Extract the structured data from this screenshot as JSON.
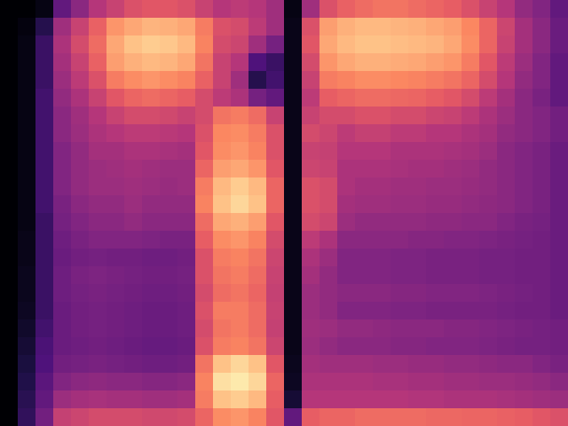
{
  "chart_data": {
    "type": "heatmap",
    "xlim": [
      0,
      32
    ],
    "ylim": [
      0,
      24
    ],
    "zlim": [
      0,
      100
    ],
    "tick_labels": false,
    "cells": [
      [
        0,
        0,
        3,
        30,
        40,
        50,
        55,
        60,
        62,
        62,
        60,
        55,
        50,
        52,
        50,
        45,
        3,
        45,
        60,
        65,
        68,
        70,
        70,
        68,
        66,
        64,
        60,
        55,
        50,
        42,
        38,
        30
      ],
      [
        0,
        2,
        15,
        45,
        55,
        65,
        78,
        82,
        85,
        84,
        82,
        72,
        60,
        58,
        52,
        45,
        4,
        60,
        80,
        84,
        86,
        86,
        85,
        84,
        82,
        80,
        75,
        66,
        56,
        46,
        40,
        32
      ],
      [
        0,
        3,
        20,
        48,
        58,
        68,
        82,
        88,
        90,
        89,
        86,
        74,
        58,
        56,
        45,
        35,
        4,
        62,
        82,
        86,
        88,
        88,
        87,
        86,
        85,
        82,
        76,
        66,
        55,
        46,
        40,
        32
      ],
      [
        0,
        3,
        20,
        46,
        55,
        65,
        80,
        84,
        86,
        85,
        82,
        70,
        55,
        50,
        25,
        20,
        4,
        58,
        78,
        82,
        84,
        84,
        83,
        82,
        80,
        78,
        72,
        62,
        52,
        44,
        38,
        30
      ],
      [
        0,
        3,
        20,
        44,
        52,
        60,
        72,
        76,
        78,
        76,
        74,
        65,
        55,
        45,
        15,
        22,
        4,
        55,
        72,
        74,
        76,
        76,
        75,
        74,
        72,
        70,
        66,
        58,
        50,
        42,
        38,
        30
      ],
      [
        0,
        3,
        22,
        42,
        48,
        55,
        62,
        66,
        68,
        66,
        64,
        58,
        52,
        48,
        35,
        30,
        4,
        52,
        64,
        66,
        68,
        68,
        67,
        66,
        64,
        62,
        58,
        52,
        46,
        40,
        36,
        30
      ],
      [
        0,
        3,
        22,
        40,
        45,
        50,
        55,
        58,
        58,
        57,
        55,
        58,
        70,
        72,
        68,
        55,
        4,
        55,
        58,
        58,
        60,
        60,
        58,
        58,
        56,
        55,
        52,
        48,
        44,
        40,
        38,
        34
      ],
      [
        0,
        3,
        22,
        40,
        44,
        48,
        50,
        52,
        52,
        51,
        50,
        60,
        75,
        76,
        72,
        60,
        4,
        58,
        56,
        52,
        54,
        54,
        52,
        52,
        50,
        50,
        48,
        46,
        42,
        40,
        38,
        34
      ],
      [
        0,
        3,
        22,
        38,
        42,
        46,
        46,
        48,
        48,
        47,
        46,
        62,
        76,
        78,
        74,
        60,
        4,
        55,
        54,
        50,
        50,
        50,
        48,
        48,
        48,
        47,
        46,
        44,
        40,
        38,
        36,
        32
      ],
      [
        0,
        3,
        22,
        38,
        42,
        44,
        45,
        46,
        45,
        44,
        44,
        66,
        80,
        82,
        78,
        62,
        4,
        56,
        55,
        48,
        48,
        48,
        47,
        46,
        46,
        45,
        44,
        42,
        40,
        38,
        36,
        32
      ],
      [
        0,
        3,
        22,
        38,
        42,
        44,
        44,
        45,
        44,
        43,
        44,
        72,
        86,
        90,
        86,
        66,
        4,
        60,
        58,
        48,
        46,
        46,
        45,
        45,
        44,
        44,
        43,
        42,
        40,
        38,
        36,
        32
      ],
      [
        0,
        3,
        22,
        36,
        40,
        42,
        42,
        44,
        42,
        42,
        42,
        74,
        88,
        92,
        88,
        66,
        4,
        60,
        58,
        46,
        45,
        45,
        44,
        44,
        43,
        43,
        42,
        41,
        40,
        38,
        36,
        32
      ],
      [
        0,
        3,
        20,
        35,
        38,
        40,
        40,
        42,
        40,
        40,
        40,
        68,
        82,
        84,
        80,
        62,
        4,
        58,
        56,
        44,
        42,
        42,
        42,
        42,
        41,
        41,
        40,
        40,
        38,
        36,
        35,
        32
      ],
      [
        0,
        4,
        20,
        33,
        36,
        38,
        38,
        38,
        37,
        36,
        36,
        64,
        76,
        78,
        74,
        58,
        4,
        52,
        48,
        40,
        40,
        40,
        40,
        39,
        39,
        38,
        38,
        37,
        36,
        35,
        34,
        32
      ],
      [
        0,
        4,
        20,
        32,
        34,
        35,
        34,
        34,
        33,
        33,
        34,
        60,
        72,
        74,
        70,
        56,
        4,
        48,
        44,
        38,
        38,
        38,
        37,
        37,
        36,
        36,
        36,
        35,
        35,
        34,
        34,
        32
      ],
      [
        0,
        5,
        20,
        33,
        36,
        37,
        36,
        35,
        34,
        34,
        35,
        60,
        70,
        72,
        68,
        55,
        4,
        46,
        42,
        38,
        38,
        38,
        37,
        37,
        36,
        36,
        36,
        35,
        35,
        34,
        34,
        32
      ],
      [
        0,
        5,
        20,
        33,
        35,
        36,
        35,
        34,
        33,
        33,
        34,
        58,
        68,
        70,
        66,
        54,
        4,
        44,
        42,
        40,
        40,
        40,
        39,
        39,
        38,
        38,
        38,
        37,
        36,
        35,
        34,
        32
      ],
      [
        0,
        6,
        20,
        32,
        34,
        35,
        34,
        33,
        32,
        32,
        33,
        60,
        72,
        72,
        68,
        55,
        4,
        44,
        42,
        38,
        38,
        38,
        37,
        37,
        36,
        36,
        36,
        36,
        35,
        34,
        34,
        32
      ],
      [
        0,
        8,
        22,
        32,
        34,
        35,
        34,
        33,
        32,
        32,
        33,
        58,
        70,
        72,
        68,
        54,
        4,
        45,
        44,
        42,
        42,
        41,
        40,
        40,
        40,
        39,
        39,
        38,
        37,
        36,
        35,
        34
      ],
      [
        0,
        10,
        24,
        32,
        33,
        34,
        33,
        32,
        31,
        31,
        32,
        60,
        72,
        74,
        70,
        56,
        4,
        44,
        42,
        40,
        40,
        40,
        39,
        39,
        38,
        38,
        38,
        37,
        36,
        35,
        35,
        34
      ],
      [
        0,
        12,
        25,
        34,
        35,
        36,
        35,
        34,
        33,
        33,
        34,
        70,
        88,
        92,
        88,
        62,
        5,
        46,
        45,
        45,
        45,
        44,
        44,
        43,
        43,
        42,
        42,
        41,
        40,
        40,
        38,
        36
      ],
      [
        0,
        14,
        28,
        38,
        40,
        41,
        40,
        40,
        39,
        39,
        40,
        74,
        94,
        96,
        92,
        66,
        6,
        48,
        48,
        48,
        48,
        47,
        47,
        46,
        46,
        45,
        45,
        44,
        44,
        43,
        42,
        40
      ],
      [
        0,
        16,
        30,
        44,
        46,
        47,
        46,
        46,
        45,
        45,
        46,
        72,
        88,
        90,
        86,
        64,
        10,
        50,
        50,
        50,
        50,
        50,
        50,
        49,
        49,
        48,
        48,
        48,
        47,
        46,
        45,
        44
      ],
      [
        0,
        18,
        34,
        54,
        56,
        58,
        58,
        58,
        57,
        57,
        58,
        66,
        76,
        78,
        74,
        62,
        30,
        64,
        66,
        66,
        68,
        68,
        68,
        68,
        67,
        67,
        66,
        66,
        65,
        64,
        62,
        60
      ]
    ]
  }
}
